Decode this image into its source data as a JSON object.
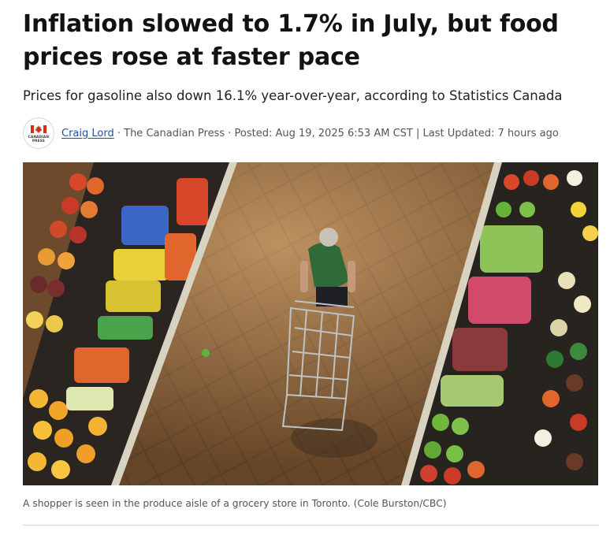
{
  "article": {
    "headline_line1": "Inflation slowed to 1.7% in July, but food",
    "headline_line2": "prices rose at faster pace",
    "deck": "Prices for gasoline also down 16.1% year-over-year, according to Statistics Canada"
  },
  "byline": {
    "logo_icon": "canadian-press-logo-icon",
    "logo_text_line1": "CANADIAN",
    "logo_text_line2": "PRESS",
    "author": "Craig Lord",
    "meta": " · The Canadian Press · Posted: Aug 19, 2025 6:53 AM CST | Last Updated: 7 hours ago"
  },
  "photo": {
    "caption": "A shopper is seen in the produce aisle of a grocery store in Toronto. (Cole Burston/CBC)"
  },
  "colors": {
    "author_link": "#1f4f9c",
    "floor": "#7a5430",
    "maple_red": "#d52b1e"
  }
}
